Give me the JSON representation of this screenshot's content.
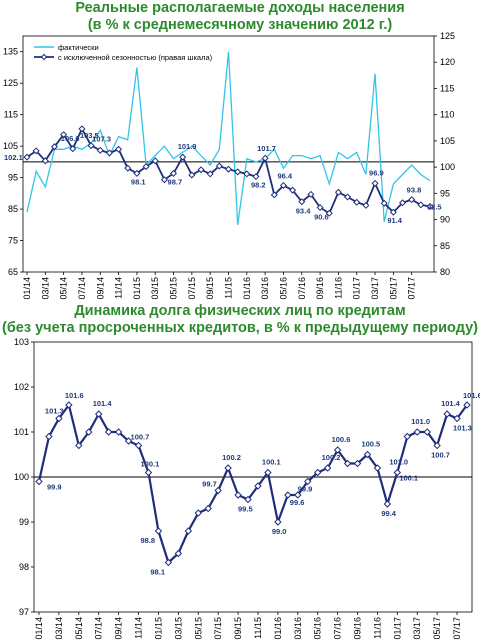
{
  "charts": [
    {
      "title_line1": "Реальные располагаемые доходы населения",
      "title_line2": "(в % к среднемесячному значению 2012 г.)"
    },
    {
      "title_line1": "Динамика долга физических лиц по кредитам",
      "title_line2": "(без учета просроченных кредитов, в % к предыдущему периоду)"
    }
  ],
  "colors": {
    "title": "#2d8a2d",
    "actual": "#33c4e8",
    "sa": "#1f2d7a",
    "debt": "#1f2d7a",
    "label": "#1f3a7a"
  },
  "chart_data": [
    {
      "type": "line",
      "title": "Реальные располагаемые доходы населения (в % к среднемесячному значению 2012 г.)",
      "x_tick_labels": [
        "01/14",
        "03/14",
        "05/14",
        "07/14",
        "09/14",
        "11/14",
        "01/15",
        "03/15",
        "05/15",
        "07/15",
        "09/15",
        "11/15",
        "01/16",
        "03/16",
        "05/16",
        "07/16",
        "09/16",
        "11/16",
        "01/17",
        "03/17",
        "05/17",
        "07/17"
      ],
      "y_left": {
        "lim": [
          65,
          140
        ],
        "ticks": [
          65,
          75,
          85,
          95,
          105,
          115,
          125,
          135
        ]
      },
      "y_right": {
        "lim": [
          80,
          125
        ],
        "ticks": [
          80,
          85,
          90,
          95,
          100,
          105,
          110,
          115,
          120,
          125
        ]
      },
      "grid": false,
      "reference_line": 101,
      "legend_position": "top-left",
      "series": [
        {
          "name": "фактически",
          "axis": "left",
          "values": [
            84,
            97,
            92,
            104,
            104,
            105,
            104,
            106,
            110,
            102,
            108,
            107,
            130,
            99,
            102,
            105,
            101,
            103,
            105,
            102,
            99,
            104,
            135,
            80,
            101,
            100,
            101,
            104,
            98,
            102,
            102,
            101,
            102,
            93,
            103,
            101,
            103,
            96,
            128,
            81,
            93,
            96,
            99,
            96,
            94
          ]
        },
        {
          "name": "с исключенной сезонностью  (правая шкала)",
          "axis": "right",
          "values": [
            101.9,
            103.1,
            101.2,
            103.9,
            106.2,
            103.5,
            107.3,
            104.1,
            103.2,
            102.7,
            103.4,
            99.8,
            98.8,
            100.1,
            101.2,
            97.6,
            98.8,
            101.9,
            98.5,
            99.5,
            98.7,
            100.2,
            99.6,
            99.1,
            98.7,
            98.2,
            101.7,
            94.7,
            96.5,
            95.6,
            93.4,
            94.8,
            92.3,
            91.2,
            95.2,
            94.3,
            93.3,
            92.7,
            96.9,
            93.1,
            91.4,
            93.2,
            93.8,
            92.8,
            92.5
          ],
          "data_labels": [
            {
              "text": "102.1"
            },
            {
              "text": "106.6"
            },
            {
              "text": "103.5"
            },
            {
              "text": "107.3"
            },
            {
              "text": "98.1"
            },
            {
              "text": "98.7"
            },
            {
              "text": "101.9"
            },
            {
              "text": "98.2"
            },
            {
              "text": "101.7"
            },
            {
              "text": "96.4"
            },
            {
              "text": "93.4"
            },
            {
              "text": "90.6"
            },
            {
              "text": "96.9"
            },
            {
              "text": "91.4"
            },
            {
              "text": "93.8"
            },
            {
              "text": "92.5"
            }
          ]
        }
      ]
    },
    {
      "type": "line",
      "title": "Динамика долга физических лиц по кредитам (без учета просроченных кредитов, в % к предыдущему периоду)",
      "x_tick_labels": [
        "01/14",
        "03/14",
        "05/14",
        "07/14",
        "09/14",
        "11/14",
        "01/15",
        "03/15",
        "05/15",
        "07/15",
        "09/15",
        "11/15",
        "01/16",
        "03/16",
        "05/16",
        "07/16",
        "09/16",
        "11/16",
        "01/17",
        "03/17",
        "05/17",
        "07/17"
      ],
      "ylim": [
        97,
        103
      ],
      "yticks": [
        97,
        98,
        99,
        100,
        101,
        102,
        103
      ],
      "grid": false,
      "reference_line": 100,
      "series": [
        {
          "name": "",
          "values": [
            99.9,
            100.9,
            101.3,
            101.6,
            100.7,
            101.0,
            101.4,
            101.0,
            101.0,
            100.8,
            100.7,
            100.1,
            98.8,
            98.1,
            98.3,
            98.8,
            99.2,
            99.3,
            99.7,
            100.2,
            99.6,
            99.5,
            99.8,
            100.1,
            99.0,
            99.6,
            99.6,
            99.9,
            100.1,
            100.2,
            100.6,
            100.3,
            100.3,
            100.5,
            100.2,
            99.4,
            100.1,
            100.9,
            101.0,
            101.0,
            100.7,
            101.4,
            101.3,
            101.6
          ],
          "data_labels": [
            {
              "text": "101.3"
            },
            {
              "text": "99.9"
            },
            {
              "text": "101.6"
            },
            {
              "text": "101.4"
            },
            {
              "text": "100.7"
            },
            {
              "text": "100.1"
            },
            {
              "text": "98.8"
            },
            {
              "text": "98.1"
            },
            {
              "text": "99.7"
            },
            {
              "text": "100.2"
            },
            {
              "text": "99.5"
            },
            {
              "text": "100.1"
            },
            {
              "text": "99.0"
            },
            {
              "text": "99.6"
            },
            {
              "text": "99.9"
            },
            {
              "text": "100.2"
            },
            {
              "text": "100.6"
            },
            {
              "text": "100.5"
            },
            {
              "text": "99.4"
            },
            {
              "text": "101.0"
            },
            {
              "text": "100.1"
            },
            {
              "text": "101.0"
            },
            {
              "text": "100.7"
            },
            {
              "text": "101.4"
            },
            {
              "text": "101.3"
            },
            {
              "text": "101.6"
            }
          ]
        }
      ]
    }
  ]
}
